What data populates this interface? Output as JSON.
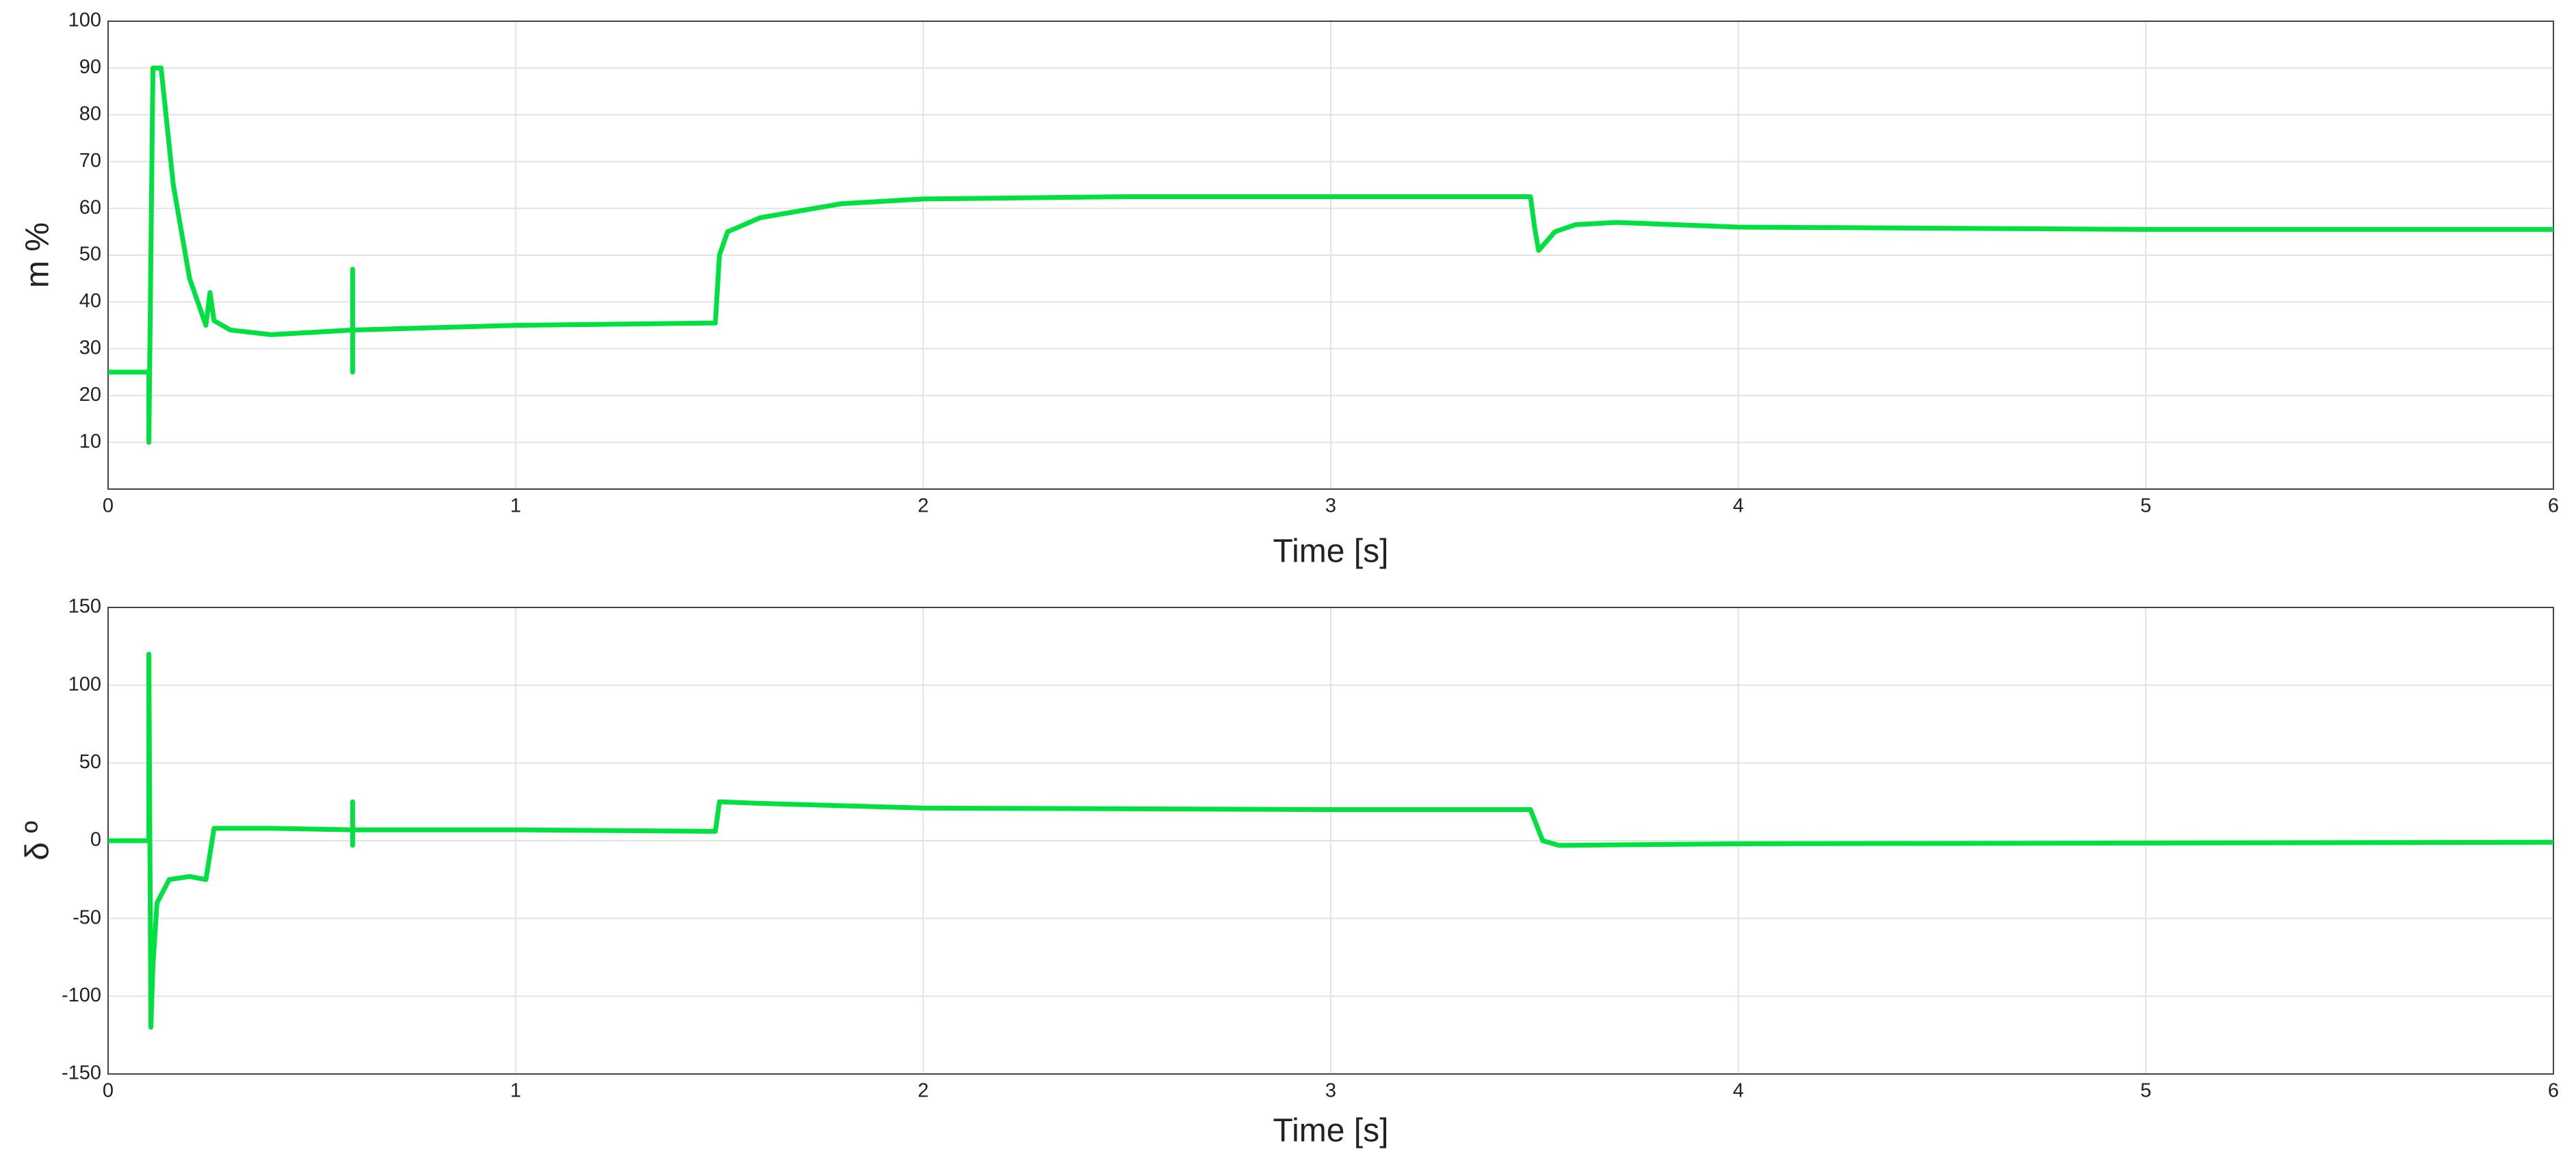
{
  "chart_data": [
    {
      "type": "line",
      "ylabel": "m %",
      "xlabel": "Time [s]",
      "x": [
        0,
        0.1,
        0.1,
        0.11,
        0.13,
        0.16,
        0.2,
        0.24,
        0.25,
        0.26,
        0.3,
        0.4,
        0.5,
        0.6,
        0.6,
        0.6,
        0.6,
        0.8,
        1.0,
        1.2,
        1.49,
        1.5,
        1.52,
        1.6,
        1.8,
        2.0,
        2.5,
        3.0,
        3.49,
        3.5,
        3.51,
        3.55,
        3.6,
        3.7,
        4.0,
        5.0,
        6.0
      ],
      "series": [
        {
          "color": "#00e040",
          "values": [
            25,
            25,
            10,
            90,
            90,
            65,
            45,
            35,
            42,
            36,
            34,
            33,
            33.5,
            34,
            47,
            25,
            34,
            34.5,
            35,
            35.2,
            35.5,
            50,
            55,
            58,
            61,
            62,
            62.5,
            62.5,
            62.5,
            56,
            51,
            55,
            56.5,
            57,
            56,
            55.5,
            55.5
          ]
        }
      ],
      "xlim": [
        0,
        6
      ],
      "xticks": [
        0,
        1,
        2,
        3,
        4,
        5,
        6
      ],
      "ylim": [
        0,
        100
      ],
      "yticks": [
        10,
        20,
        30,
        40,
        50,
        60,
        70,
        80,
        90,
        100
      ],
      "grid": true
    },
    {
      "type": "line",
      "ylabel": "δ º",
      "xlabel": "Time [s]",
      "x": [
        0,
        0.1,
        0.1,
        0.105,
        0.11,
        0.12,
        0.15,
        0.2,
        0.24,
        0.26,
        0.4,
        0.6,
        0.6,
        0.6,
        0.6,
        1.0,
        1.49,
        1.5,
        1.6,
        2.0,
        3.0,
        3.49,
        3.52,
        3.56,
        4.0,
        6.0
      ],
      "series": [
        {
          "color": "#00e040",
          "values": [
            0,
            0,
            120,
            -120,
            -80,
            -40,
            -25,
            -23,
            -25,
            8,
            8,
            7,
            25,
            -3,
            7,
            7,
            6,
            25,
            24,
            21,
            20,
            20,
            0,
            -3,
            -2,
            -1
          ]
        }
      ],
      "xlim": [
        0,
        6
      ],
      "xticks": [
        0,
        1,
        2,
        3,
        4,
        5,
        6
      ],
      "ylim": [
        -150,
        150
      ],
      "yticks": [
        -150,
        -100,
        -50,
        0,
        50,
        100,
        150
      ],
      "grid": true
    }
  ]
}
